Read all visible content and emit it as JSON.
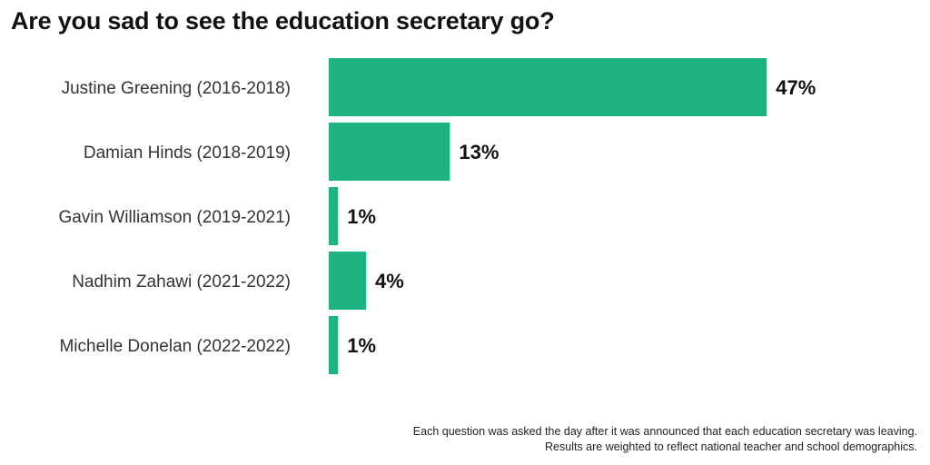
{
  "chart_data": {
    "type": "bar",
    "orientation": "horizontal",
    "title": "Are you sad to see the education secretary go?",
    "categories": [
      "Justine Greening (2016-2018)",
      "Damian Hinds (2018-2019)",
      "Gavin Williamson (2019-2021)",
      "Nadhim Zahawi (2021-2022)",
      "Michelle Donelan (2022-2022)"
    ],
    "values": [
      47,
      13,
      1,
      4,
      1
    ],
    "value_labels": [
      "47%",
      "13%",
      "1%",
      "4%",
      "1%"
    ],
    "unit": "%",
    "bar_color": "#1db47f",
    "grid": false,
    "legend": "none"
  },
  "footnotes": [
    "Each question was asked the day after it was announced that each education secretary was leaving.",
    "Results are weighted to reflect national teacher and school demographics."
  ]
}
